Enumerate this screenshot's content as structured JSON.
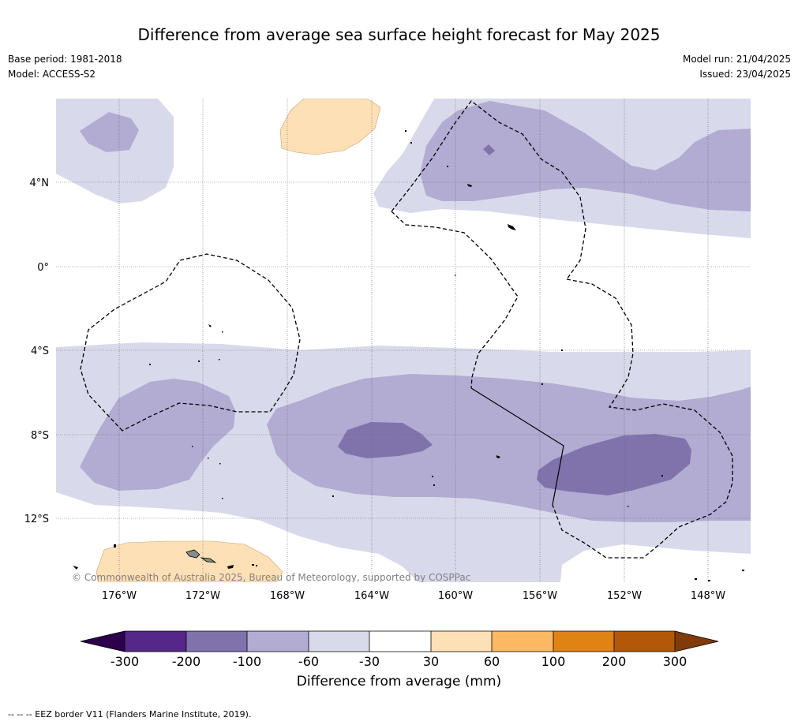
{
  "title": "Difference from average sea surface height forecast for May 2025",
  "meta": {
    "base_period": "Base period: 1981-2018",
    "model": "Model: ACCESS-S2",
    "model_run": "Model run: 21/04/2025",
    "issued": "Issued: 23/04/2025"
  },
  "map": {
    "longitude_labels": [
      "176°W",
      "172°W",
      "168°W",
      "164°W",
      "160°W",
      "156°W",
      "152°W",
      "148°W"
    ],
    "latitude_labels": [
      "4°N",
      "0°",
      "4°S",
      "8°S",
      "12°S"
    ],
    "copyright": "© Commonwealth of Australia 2025, Bureau of Meteorology, supported by COSPPac",
    "gridlines": true,
    "eez_border_style": "dashed"
  },
  "legend": {
    "title": "Difference from average (mm)",
    "tick_labels": [
      "-300",
      "-200",
      "-100",
      "-60",
      "-30",
      "30",
      "60",
      "100",
      "200",
      "300"
    ],
    "under_color": "#2d004b",
    "over_color": "#7f3b08",
    "bin_colors": [
      "#542788",
      "#8073ac",
      "#b2abd2",
      "#d8daeb",
      "#ffffff",
      "#fee0b6",
      "#fdb863",
      "#e08214",
      "#b35806"
    ]
  },
  "footnote": "--  --  -- EEZ border V11 (Flanders Marine Institute, 2019)."
}
